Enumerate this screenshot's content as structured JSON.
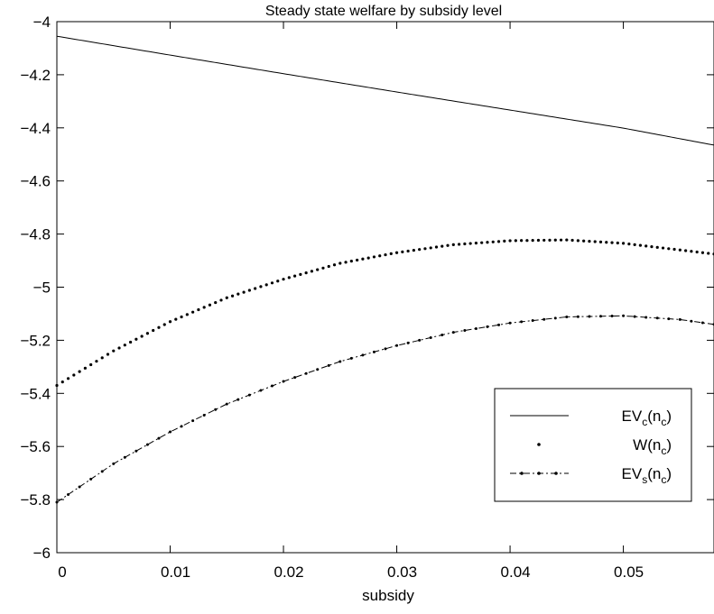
{
  "chart_data": {
    "type": "line",
    "title": "Steady state welfare by subsidy level",
    "xlabel": "subsidy",
    "ylabel": "",
    "xlim": [
      0,
      0.058
    ],
    "ylim": [
      -6,
      -4
    ],
    "x_ticks": [
      "0",
      "0.01",
      "0.02",
      "0.03",
      "0.04",
      "0.05"
    ],
    "y_ticks": [
      "-4",
      "-4.2",
      "-4.4",
      "-4.6",
      "-4.8",
      "-5",
      "-5.2",
      "-5.4",
      "-5.6",
      "-5.8",
      "-6"
    ],
    "grid": false,
    "legend_position": "right",
    "series": [
      {
        "name": "EVc(nc)",
        "name_parts": {
          "base": "EV",
          "sub": "c",
          "arg_base": "(n",
          "arg_sub": "c",
          "arg_close": ")"
        },
        "style": "solid",
        "points": [
          [
            0,
            -4.055
          ],
          [
            0.01,
            -4.126
          ],
          [
            0.02,
            -4.196
          ],
          [
            0.03,
            -4.265
          ],
          [
            0.04,
            -4.333
          ],
          [
            0.05,
            -4.401
          ],
          [
            0.058,
            -4.465
          ]
        ]
      },
      {
        "name": "W(nc)",
        "name_parts": {
          "base": "W",
          "sub": "",
          "arg_base": "(n",
          "arg_sub": "c",
          "arg_close": ")"
        },
        "style": "dotted",
        "points": [
          [
            0,
            -5.37
          ],
          [
            0.005,
            -5.24
          ],
          [
            0.01,
            -5.13
          ],
          [
            0.015,
            -5.04
          ],
          [
            0.02,
            -4.97
          ],
          [
            0.025,
            -4.91
          ],
          [
            0.03,
            -4.87
          ],
          [
            0.035,
            -4.84
          ],
          [
            0.04,
            -4.825
          ],
          [
            0.045,
            -4.822
          ],
          [
            0.05,
            -4.835
          ],
          [
            0.055,
            -4.86
          ],
          [
            0.058,
            -4.875
          ]
        ]
      },
      {
        "name": "EVs(nc)",
        "name_parts": {
          "base": "EV",
          "sub": "s",
          "arg_base": "(n",
          "arg_sub": "c",
          "arg_close": ")"
        },
        "style": "dashdot",
        "points": [
          [
            0,
            -5.81
          ],
          [
            0.005,
            -5.665
          ],
          [
            0.01,
            -5.545
          ],
          [
            0.015,
            -5.44
          ],
          [
            0.02,
            -5.355
          ],
          [
            0.025,
            -5.28
          ],
          [
            0.03,
            -5.22
          ],
          [
            0.035,
            -5.17
          ],
          [
            0.04,
            -5.135
          ],
          [
            0.045,
            -5.112
          ],
          [
            0.05,
            -5.108
          ],
          [
            0.055,
            -5.122
          ],
          [
            0.058,
            -5.14
          ]
        ]
      }
    ]
  }
}
